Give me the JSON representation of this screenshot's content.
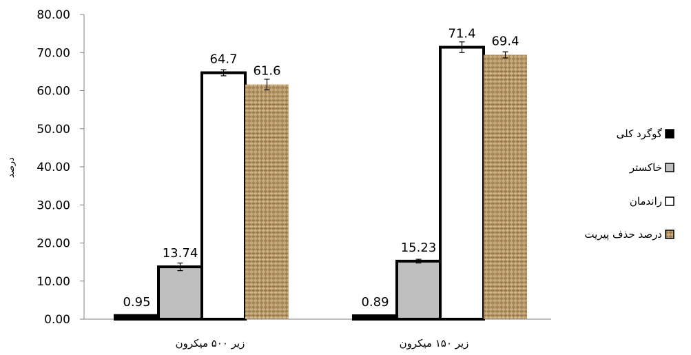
{
  "chart_data": {
    "type": "bar",
    "title": "",
    "xlabel": "",
    "ylabel": "درصد",
    "ylim": [
      0,
      80
    ],
    "yticks": [
      "0.00",
      "10.00",
      "20.00",
      "30.00",
      "40.00",
      "50.00",
      "60.00",
      "70.00",
      "80.00"
    ],
    "categories": [
      "زیر ۵۰۰ میکرون",
      "زیر ۱۵۰ میکرون"
    ],
    "grid": false,
    "legend_position": "right",
    "series": [
      {
        "name": "گوگرد کلی",
        "values": [
          0.95,
          0.89
        ],
        "labels": [
          "0.95",
          "0.89"
        ],
        "errors": [
          0.1,
          0.1
        ],
        "color": "#000000",
        "pattern": "solid"
      },
      {
        "name": "خاکستر",
        "values": [
          13.74,
          15.23
        ],
        "labels": [
          "13.74",
          "15.23"
        ],
        "errors": [
          1.0,
          0.5
        ],
        "color": "#bfbfbf",
        "pattern": "solid"
      },
      {
        "name": "راندمان",
        "values": [
          64.7,
          71.4
        ],
        "labels": [
          "64.7",
          "71.4"
        ],
        "errors": [
          0.8,
          1.4
        ],
        "color": "#ffffff",
        "pattern": "solid"
      },
      {
        "name": "درصد حذف پیریت",
        "values": [
          61.6,
          69.4
        ],
        "labels": [
          "61.6",
          "69.4"
        ],
        "errors": [
          1.4,
          0.8
        ],
        "color": "#b89a66",
        "pattern": "burlap"
      }
    ]
  }
}
